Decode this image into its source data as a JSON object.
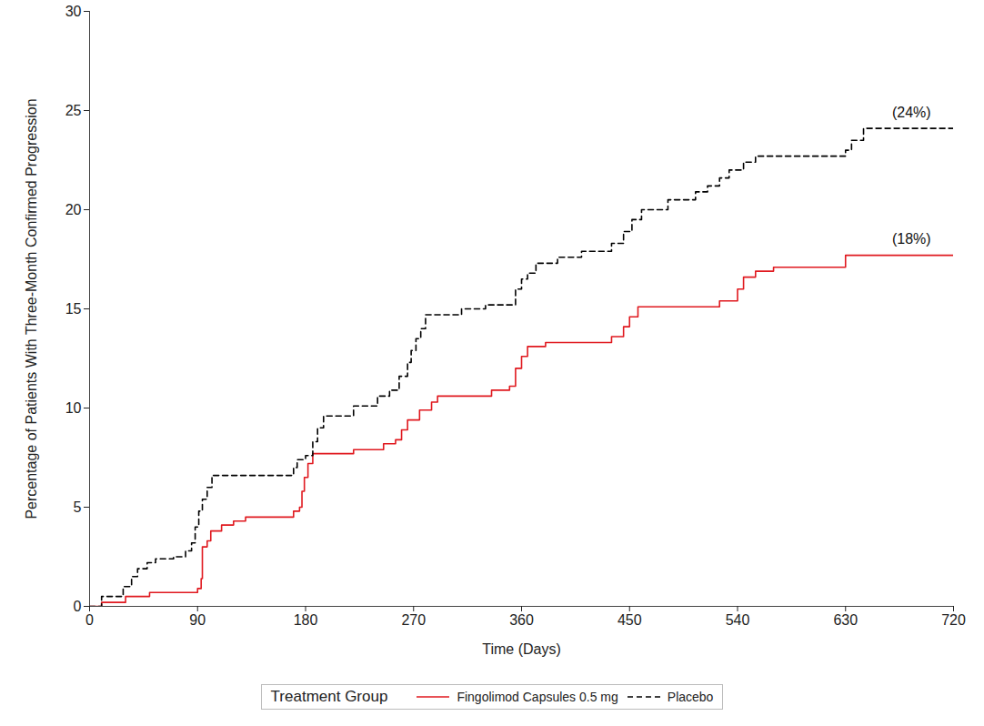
{
  "chart_data": {
    "type": "line",
    "x_label": "Time (Days)",
    "y_label": "Percentage of Patients With Three-Month Confirmed Progression",
    "xlim": [
      0,
      720
    ],
    "xticks": [
      0,
      90,
      180,
      270,
      360,
      450,
      540,
      630,
      720
    ],
    "ylim": [
      0,
      30
    ],
    "yticks": [
      0,
      5,
      10,
      15,
      20,
      25,
      30
    ],
    "grid": false,
    "legend": "bottom",
    "legend_title": "Treatment Group",
    "series": [
      {
        "name": "Fingolimod Capsules 0.5 mg",
        "color": "#e0191f",
        "line_style": "solid",
        "x": [
          0,
          10,
          30,
          50,
          90,
          93,
          94,
          98,
          101,
          110,
          120,
          130,
          170,
          175,
          177,
          179,
          182,
          186,
          220,
          245,
          255,
          260,
          265,
          275,
          285,
          290,
          335,
          350,
          355,
          360,
          365,
          380,
          435,
          445,
          450,
          457,
          525,
          540,
          545,
          555,
          570,
          630,
          720
        ],
        "values": [
          0,
          0.2,
          0.5,
          0.7,
          0.9,
          1.4,
          3.0,
          3.3,
          3.8,
          4.1,
          4.3,
          4.5,
          4.8,
          5.0,
          5.8,
          6.5,
          7.2,
          7.7,
          7.9,
          8.2,
          8.4,
          8.9,
          9.4,
          9.9,
          10.3,
          10.6,
          10.9,
          11.1,
          12.0,
          12.6,
          13.1,
          13.3,
          13.6,
          14.1,
          14.6,
          15.1,
          15.4,
          16.0,
          16.6,
          16.9,
          17.1,
          17.7,
          17.7
        ]
      },
      {
        "name": "Placebo",
        "color": "#000000",
        "line_style": "dashed",
        "x": [
          0,
          10,
          28,
          35,
          40,
          48,
          55,
          70,
          80,
          85,
          88,
          91,
          94,
          98,
          102,
          170,
          173,
          180,
          186,
          190,
          195,
          220,
          240,
          250,
          258,
          265,
          268,
          272,
          276,
          280,
          310,
          330,
          355,
          360,
          365,
          372,
          390,
          410,
          435,
          445,
          452,
          460,
          482,
          505,
          515,
          525,
          533,
          545,
          555,
          630,
          635,
          645,
          720
        ],
        "values": [
          0,
          0.5,
          1.0,
          1.5,
          1.9,
          2.2,
          2.4,
          2.5,
          2.8,
          3.2,
          4.0,
          4.8,
          5.4,
          6.0,
          6.6,
          7.0,
          7.4,
          7.6,
          8.3,
          9.0,
          9.6,
          10.1,
          10.6,
          10.9,
          11.6,
          12.3,
          12.9,
          13.5,
          14.0,
          14.7,
          15.0,
          15.2,
          16.0,
          16.5,
          16.8,
          17.3,
          17.6,
          17.9,
          18.3,
          18.9,
          19.5,
          20.0,
          20.5,
          20.9,
          21.2,
          21.6,
          22.0,
          22.4,
          22.7,
          23.0,
          23.5,
          24.1,
          24.1
        ]
      }
    ],
    "annotations": [
      {
        "text": "(24%)",
        "x": 685,
        "y": 24.9
      },
      {
        "text": "(18%)",
        "x": 685,
        "y": 18.5
      }
    ]
  }
}
